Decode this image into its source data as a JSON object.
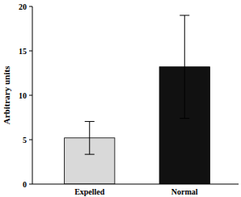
{
  "chart_data": {
    "type": "bar",
    "y_label": "Arbitrary units",
    "categories": [
      "Expelled",
      "Normal"
    ],
    "values": [
      5.2,
      13.2
    ],
    "errors": [
      1.85,
      5.8
    ],
    "colors": [
      "#d9d9d9",
      "#111111"
    ],
    "ylim": [
      0,
      20
    ],
    "yticks": [
      0,
      5,
      10,
      15,
      20
    ],
    "grid": false
  }
}
